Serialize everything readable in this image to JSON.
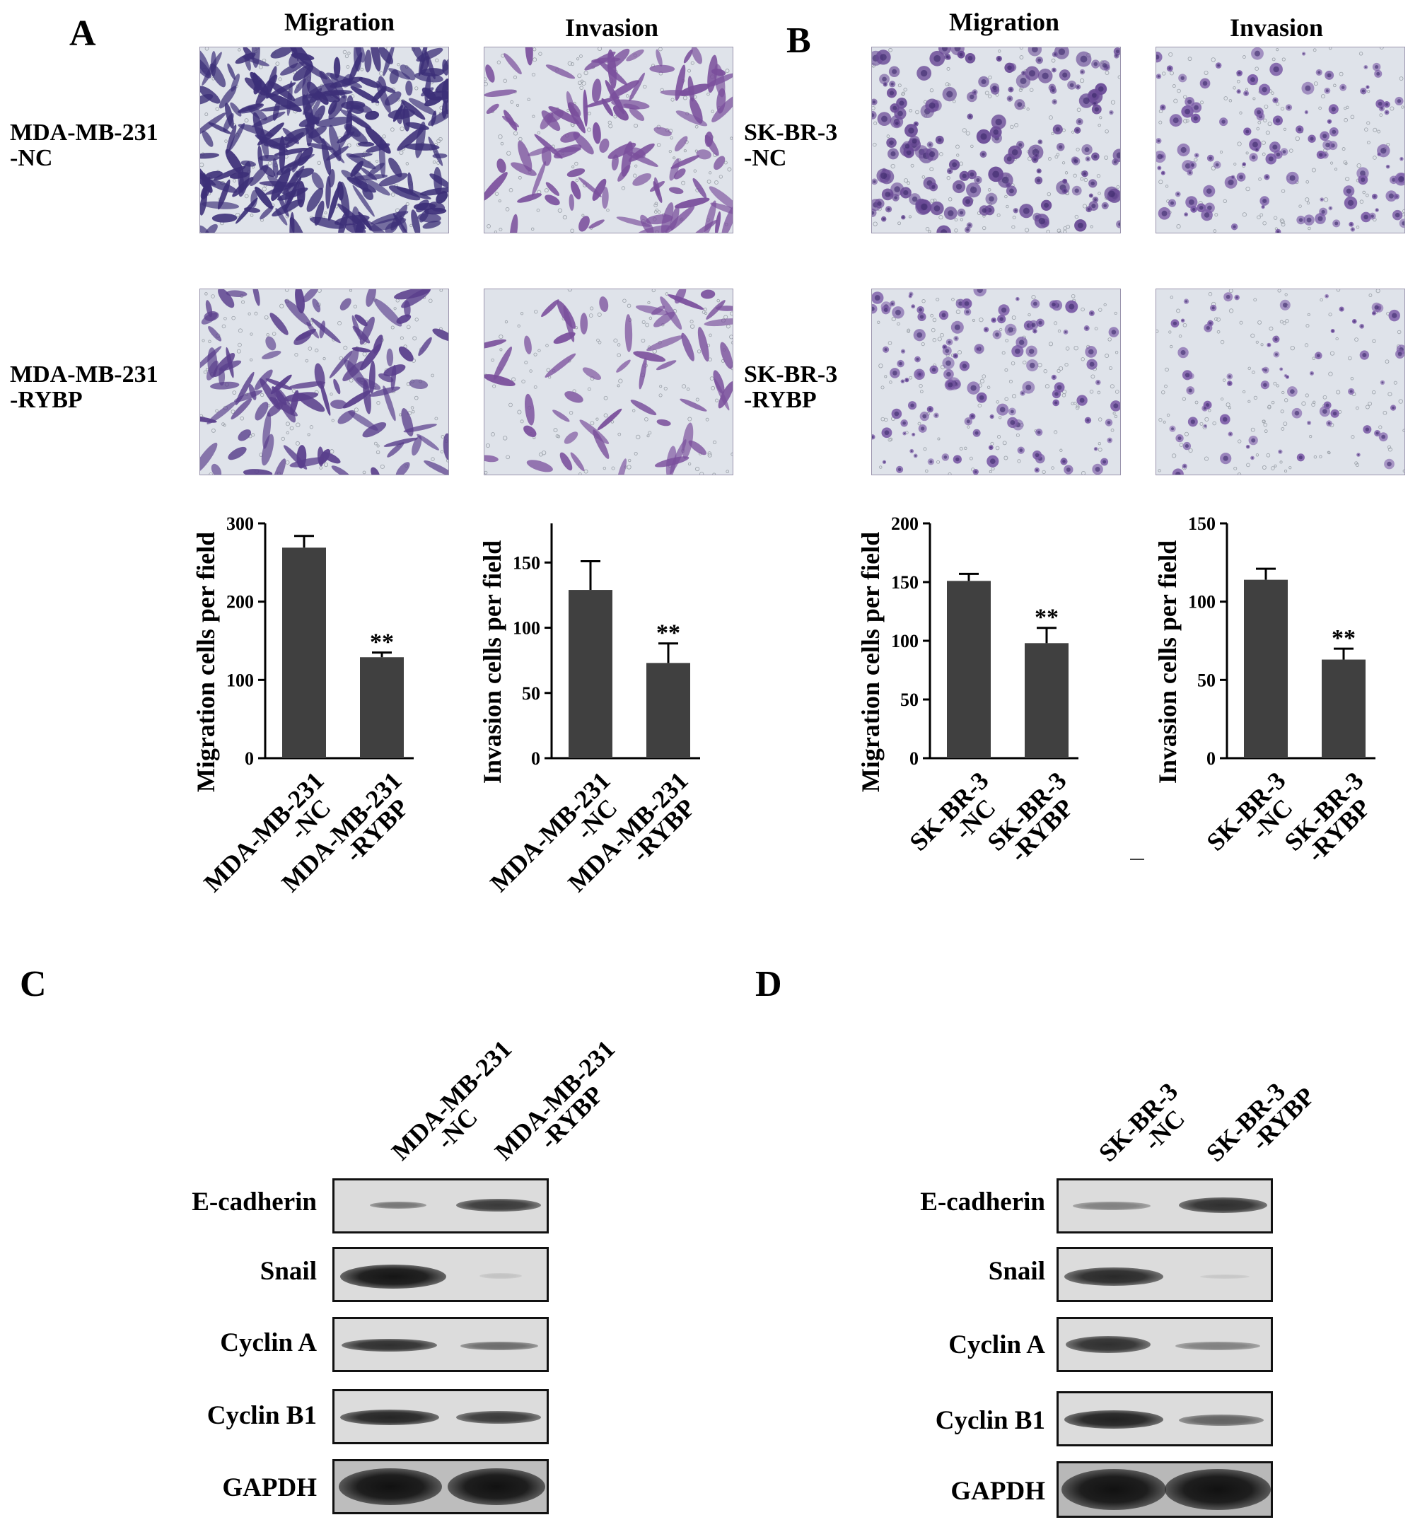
{
  "panels": {
    "A": {
      "letter": "A",
      "col_titles": [
        "Migration",
        "Invasion"
      ],
      "row_labels": [
        [
          "MDA-MB-231",
          "-NC"
        ],
        [
          "MDA-MB-231",
          "-RYBP"
        ]
      ]
    },
    "B": {
      "letter": "B",
      "col_titles": [
        "Migration",
        "Invasion"
      ],
      "row_labels": [
        [
          "SK-BR-3",
          "-NC"
        ],
        [
          "SK-BR-3",
          "-RYBP"
        ]
      ]
    },
    "C": {
      "letter": "C",
      "lane_headers": [
        [
          "MDA-MB-231",
          "-NC"
        ],
        [
          "MDA-MB-231",
          "-RYBP"
        ]
      ],
      "proteins": [
        "E-cadherin",
        "Snail",
        "Cyclin A",
        "Cyclin B1",
        "GAPDH"
      ]
    },
    "D": {
      "letter": "D",
      "lane_headers": [
        [
          "SK-BR-3",
          "-NC"
        ],
        [
          "SK-BR-3",
          "-RYBP"
        ]
      ],
      "proteins": [
        "E-cadherin",
        "Snail",
        "Cyclin A",
        "Cyclin B1",
        "GAPDH"
      ]
    }
  },
  "colors": {
    "bar": "#404040",
    "stain_dense": "#3c2f78",
    "stain_purple": "#7a4f9c",
    "micro_bg": "#dfe3ea"
  },
  "chart_data": [
    {
      "type": "bar",
      "ylabel": "Migration cells per field",
      "categories": [
        [
          "MDA-MB-231",
          "-NC"
        ],
        [
          "MDA-MB-231",
          "-RYBP"
        ]
      ],
      "values": [
        269,
        129
      ],
      "errors": [
        15,
        6
      ],
      "significance": [
        "",
        "**"
      ],
      "ylim": [
        0,
        300
      ],
      "yticks": [
        0,
        100,
        200,
        300
      ]
    },
    {
      "type": "bar",
      "ylabel": "Invasion cells per field",
      "categories": [
        [
          "MDA-MB-231",
          "-NC"
        ],
        [
          "MDA-MB-231",
          "-RYBP"
        ]
      ],
      "values": [
        129,
        73
      ],
      "errors": [
        22,
        15
      ],
      "significance": [
        "",
        "**"
      ],
      "ylim": [
        0,
        180
      ],
      "yticks": [
        0,
        50,
        100,
        150
      ]
    },
    {
      "type": "bar",
      "ylabel": "Migration cells per field",
      "categories": [
        [
          "SK-BR-3",
          "-NC"
        ],
        [
          "SK-BR-3",
          "-RYBP"
        ]
      ],
      "values": [
        151,
        98
      ],
      "errors": [
        6,
        13
      ],
      "significance": [
        "",
        "**"
      ],
      "ylim": [
        0,
        200
      ],
      "yticks": [
        0,
        50,
        100,
        150,
        200
      ]
    },
    {
      "type": "bar",
      "ylabel": "Invasion cells per field",
      "categories": [
        [
          "SK-BR-3",
          "-NC"
        ],
        [
          "SK-BR-3",
          "-RYBP"
        ]
      ],
      "values": [
        114,
        63
      ],
      "errors": [
        7,
        7
      ],
      "significance": [
        "",
        "**"
      ],
      "ylim": [
        0,
        150
      ],
      "yticks": [
        0,
        50,
        100,
        150
      ]
    }
  ]
}
